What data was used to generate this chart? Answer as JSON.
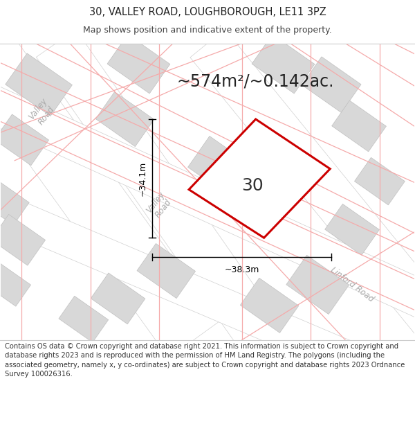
{
  "title": "30, VALLEY ROAD, LOUGHBOROUGH, LE11 3PZ",
  "subtitle": "Map shows position and indicative extent of the property.",
  "area_text": "~574m²/~0.142ac.",
  "house_number": "30",
  "dim_width": "~38.3m",
  "dim_height": "~34.1m",
  "footer": "Contains OS data © Crown copyright and database right 2021. This information is subject to Crown copyright and database rights 2023 and is reproduced with the permission of HM Land Registry. The polygons (including the associated geometry, namely x, y co-ordinates) are subject to Crown copyright and database rights 2023 Ordnance Survey 100026316.",
  "bg_color": "#ffffff",
  "map_bg": "#f0f0f0",
  "block_color": "#d8d8d8",
  "block_ec": "#c0c0c0",
  "road_color": "#ffffff",
  "road_ec": "#d0d0d0",
  "plot_color": "#ffffff",
  "plot_outline_color": "#cc0000",
  "pink_line_color": "#f5aaaa",
  "road_label_color": "#aaaaaa",
  "dim_color": "#000000",
  "title_fontsize": 10.5,
  "subtitle_fontsize": 9,
  "area_fontsize": 17,
  "house_fontsize": 18,
  "footer_fontsize": 7.2,
  "road_label_fontsize": 8.5
}
